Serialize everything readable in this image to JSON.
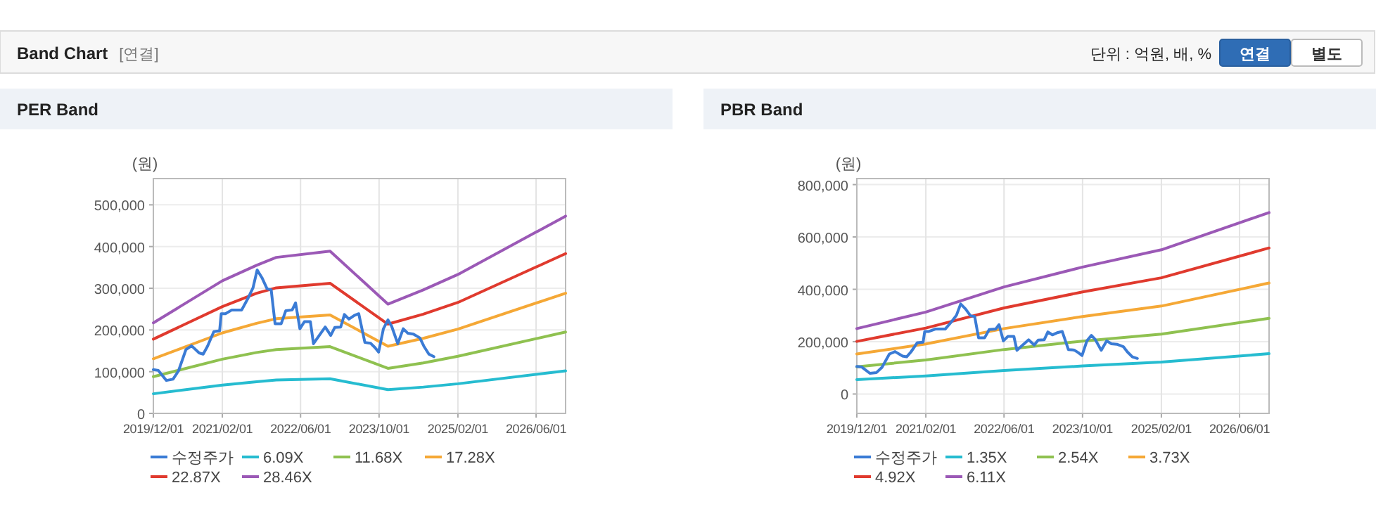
{
  "chart_data": [
    {
      "type": "other",
      "title": "Band Chart",
      "annotations": [
        "[연결]",
        "단위 : 억원, 배, %",
        "연결",
        "별도"
      ]
    },
    {
      "type": "line",
      "title": "PER Band",
      "ylabel": "(원)",
      "grid": true,
      "legend": "bottom",
      "xlim": [
        "2019-12-01",
        "2026-12-01"
      ],
      "ylim": [
        0,
        563000
      ],
      "xticks": [
        {
          "value": "2019-12-01",
          "label": "2019/12/01"
        },
        {
          "value": "2021-02-01",
          "label": "2021/02/01"
        },
        {
          "value": "2022-06-01",
          "label": "2022/06/01"
        },
        {
          "value": "2023-10-01",
          "label": "2023/10/01"
        },
        {
          "value": "2025-02-01",
          "label": "2025/02/01"
        },
        {
          "value": "2026-06-01",
          "label": "2026/06/01"
        }
      ],
      "yticks": [
        0,
        {
          "value": 100000,
          "label": "100,000"
        },
        {
          "value": 200000,
          "label": "200,000"
        },
        {
          "value": 300000,
          "label": "300,000"
        },
        {
          "value": 400000,
          "label": "400,000"
        },
        {
          "value": 500000,
          "label": "500,000"
        }
      ],
      "series": [
        {
          "name": "수정주가",
          "color": "#3a7bd5",
          "x": [
            "2019-12-01",
            "2020-01-01",
            "2020-02-20",
            "2020-04-01",
            "2020-05-05",
            "2020-06-20",
            "2020-07-25",
            "2020-09-10",
            "2020-10-05",
            "2020-11-01",
            "2020-12-10",
            "2021-01-15",
            "2021-01-25",
            "2021-02-20",
            "2021-04-01",
            "2021-06-01",
            "2021-07-10",
            "2021-08-10",
            "2021-09-05",
            "2021-10-05",
            "2021-11-05",
            "2021-12-01",
            "2021-12-25",
            "2022-02-01",
            "2022-03-01",
            "2022-04-10",
            "2022-05-01",
            "2022-05-28",
            "2022-06-25",
            "2022-08-01",
            "2022-08-20",
            "2022-09-25",
            "2022-11-01",
            "2022-12-05",
            "2022-12-30",
            "2023-02-05",
            "2023-02-28",
            "2023-03-28",
            "2023-05-01",
            "2023-05-28",
            "2023-07-05",
            "2023-08-10",
            "2023-09-05",
            "2023-09-28",
            "2023-10-28",
            "2023-11-25",
            "2023-12-18",
            "2024-01-25",
            "2024-02-28",
            "2024-03-28",
            "2024-05-01",
            "2024-06-10",
            "2024-07-05",
            "2024-08-05",
            "2024-09-05"
          ],
          "values": [
            105000,
            103000,
            79000,
            82000,
            102000,
            153000,
            162000,
            145000,
            142000,
            161000,
            196000,
            198000,
            239000,
            239000,
            248000,
            248000,
            276000,
            301000,
            344000,
            325000,
            299000,
            296000,
            215000,
            215000,
            246000,
            248000,
            265000,
            203000,
            220000,
            220000,
            167000,
            187000,
            207000,
            187000,
            206000,
            207000,
            237000,
            226000,
            235000,
            239000,
            170000,
            168000,
            158000,
            147000,
            203000,
            224000,
            209000,
            167000,
            203000,
            192000,
            190000,
            181000,
            161000,
            142000,
            136000
          ]
        },
        {
          "name": "6.09X",
          "color": "#26bcd0",
          "x": [
            "2019-12-01",
            "2021-02-01",
            "2021-09-01",
            "2022-01-01",
            "2022-12-01",
            "2023-11-25",
            "2024-07-01",
            "2025-02-01",
            "2026-12-01"
          ],
          "values": [
            47000,
            68000,
            76000,
            80000,
            83000,
            57000,
            63000,
            71000,
            102000
          ]
        },
        {
          "name": "11.68X",
          "color": "#8fc150",
          "x": [
            "2019-12-01",
            "2021-02-01",
            "2021-09-01",
            "2022-01-01",
            "2022-12-01",
            "2023-11-25",
            "2024-07-01",
            "2025-02-01",
            "2026-12-01"
          ],
          "values": [
            88000,
            130000,
            146000,
            153000,
            160000,
            108000,
            121000,
            137000,
            195000
          ]
        },
        {
          "name": "17.28X",
          "color": "#f5a836",
          "x": [
            "2019-12-01",
            "2021-02-01",
            "2021-09-01",
            "2022-01-01",
            "2022-12-01",
            "2023-11-25",
            "2024-07-01",
            "2025-02-01",
            "2026-12-01"
          ],
          "values": [
            131000,
            193000,
            216000,
            227000,
            236000,
            161000,
            180000,
            202000,
            288000
          ]
        },
        {
          "name": "22.87X",
          "color": "#e03a2e",
          "x": [
            "2019-12-01",
            "2021-02-01",
            "2021-09-01",
            "2022-01-01",
            "2022-12-01",
            "2023-11-25",
            "2024-07-01",
            "2025-02-01",
            "2026-12-01"
          ],
          "values": [
            178000,
            256000,
            288000,
            301000,
            312000,
            214000,
            238000,
            266000,
            383000
          ]
        },
        {
          "name": "28.46X",
          "color": "#9b59b6",
          "x": [
            "2019-12-01",
            "2021-02-01",
            "2021-09-01",
            "2022-01-01",
            "2022-12-01",
            "2023-11-25",
            "2024-07-01",
            "2025-02-01",
            "2026-12-01"
          ],
          "values": [
            217000,
            318000,
            355000,
            374000,
            389000,
            262000,
            296000,
            333000,
            473000
          ]
        }
      ]
    },
    {
      "type": "line",
      "title": "PBR Band",
      "ylabel": "(원)",
      "grid": true,
      "legend": "bottom",
      "xlim": [
        "2019-12-01",
        "2026-12-01"
      ],
      "ylim": [
        -74000,
        823000
      ],
      "xticks": [
        {
          "value": "2019-12-01",
          "label": "2019/12/01"
        },
        {
          "value": "2021-02-01",
          "label": "2021/02/01"
        },
        {
          "value": "2022-06-01",
          "label": "2022/06/01"
        },
        {
          "value": "2023-10-01",
          "label": "2023/10/01"
        },
        {
          "value": "2025-02-01",
          "label": "2025/02/01"
        },
        {
          "value": "2026-06-01",
          "label": "2026/06/01"
        }
      ],
      "yticks": [
        0,
        {
          "value": 200000,
          "label": "200,000"
        },
        {
          "value": 400000,
          "label": "400,000"
        },
        {
          "value": 600000,
          "label": "600,000"
        },
        {
          "value": 800000,
          "label": "800,000"
        }
      ],
      "series": [
        {
          "name": "수정주가",
          "color": "#3a7bd5",
          "x": [
            "2019-12-01",
            "2020-01-01",
            "2020-02-20",
            "2020-04-01",
            "2020-05-05",
            "2020-06-20",
            "2020-07-25",
            "2020-09-10",
            "2020-10-05",
            "2020-11-01",
            "2020-12-10",
            "2021-01-15",
            "2021-01-25",
            "2021-02-20",
            "2021-04-01",
            "2021-06-01",
            "2021-07-10",
            "2021-08-10",
            "2021-09-05",
            "2021-10-05",
            "2021-11-05",
            "2021-12-01",
            "2021-12-25",
            "2022-02-01",
            "2022-03-01",
            "2022-04-10",
            "2022-05-01",
            "2022-05-28",
            "2022-06-25",
            "2022-08-01",
            "2022-08-20",
            "2022-09-25",
            "2022-11-01",
            "2022-12-05",
            "2022-12-30",
            "2023-02-05",
            "2023-02-28",
            "2023-03-28",
            "2023-05-01",
            "2023-05-28",
            "2023-07-05",
            "2023-08-10",
            "2023-09-05",
            "2023-09-28",
            "2023-10-28",
            "2023-11-25",
            "2023-12-18",
            "2024-01-25",
            "2024-02-28",
            "2024-03-28",
            "2024-05-01",
            "2024-06-10",
            "2024-07-05",
            "2024-08-05",
            "2024-09-05"
          ],
          "values": [
            105000,
            103000,
            79000,
            82000,
            102000,
            153000,
            162000,
            145000,
            142000,
            161000,
            196000,
            198000,
            239000,
            239000,
            248000,
            248000,
            276000,
            301000,
            344000,
            325000,
            299000,
            296000,
            215000,
            215000,
            246000,
            248000,
            265000,
            203000,
            220000,
            220000,
            167000,
            187000,
            207000,
            187000,
            206000,
            207000,
            237000,
            226000,
            235000,
            239000,
            170000,
            168000,
            158000,
            147000,
            203000,
            224000,
            209000,
            167000,
            203000,
            192000,
            190000,
            181000,
            161000,
            142000,
            136000
          ]
        },
        {
          "name": "1.35X",
          "color": "#26bcd0",
          "x": [
            "2019-12-01",
            "2021-02-01",
            "2022-06-01",
            "2023-10-01",
            "2025-02-01",
            "2026-12-01"
          ],
          "values": [
            55000,
            69000,
            90000,
            107000,
            122000,
            154000
          ]
        },
        {
          "name": "2.54X",
          "color": "#8fc150",
          "x": [
            "2019-12-01",
            "2021-02-01",
            "2022-06-01",
            "2023-10-01",
            "2025-02-01",
            "2026-12-01"
          ],
          "values": [
            104000,
            130000,
            170000,
            202000,
            229000,
            289000
          ]
        },
        {
          "name": "3.73X",
          "color": "#f5a836",
          "x": [
            "2019-12-01",
            "2021-02-01",
            "2022-06-01",
            "2023-10-01",
            "2025-02-01",
            "2026-12-01"
          ],
          "values": [
            153000,
            191000,
            250000,
            296000,
            336000,
            424000
          ]
        },
        {
          "name": "4.92X",
          "color": "#e03a2e",
          "x": [
            "2019-12-01",
            "2021-02-01",
            "2022-06-01",
            "2023-10-01",
            "2025-02-01",
            "2026-12-01"
          ],
          "values": [
            201000,
            252000,
            329000,
            390000,
            444000,
            558000
          ]
        },
        {
          "name": "6.11X",
          "color": "#9b59b6",
          "x": [
            "2019-12-01",
            "2021-02-01",
            "2022-06-01",
            "2023-10-01",
            "2025-02-01",
            "2026-12-01"
          ],
          "values": [
            250000,
            313000,
            409000,
            485000,
            551000,
            693000
          ]
        }
      ]
    }
  ]
}
